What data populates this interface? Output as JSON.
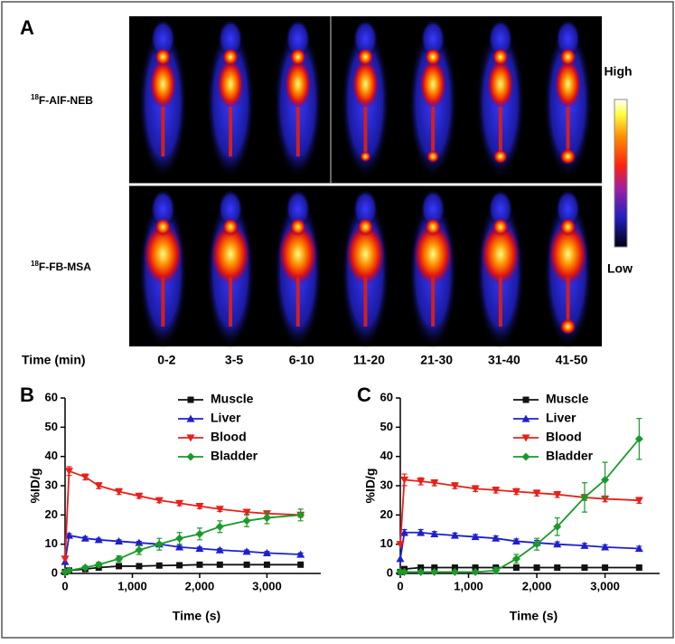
{
  "panel_a": {
    "panel_label": "A",
    "rows": [
      {
        "sup": "18",
        "text": "F-AlF-NEB"
      },
      {
        "sup": "18",
        "text": "F-FB-MSA"
      }
    ],
    "scale_high": "High",
    "scale_low": "Low",
    "time_label": "Time (min)",
    "time_frames": [
      "0-2",
      "3-5",
      "6-10",
      "11-20",
      "21-30",
      "31-40",
      "41-50"
    ]
  },
  "chart_data": [
    {
      "type": "line",
      "panel_label": "B",
      "x_label": "Time (s)",
      "y_label": "%ID/g",
      "x": [
        0,
        60,
        300,
        500,
        800,
        1100,
        1400,
        1700,
        2000,
        2300,
        2700,
        3000,
        3500
      ],
      "xlim": [
        0,
        3800
      ],
      "xticks": [
        0,
        {
          "value": 1000,
          "label": "1,000"
        },
        {
          "value": 2000,
          "label": "2,000"
        },
        {
          "value": 3000,
          "label": "3,000"
        }
      ],
      "ylim": [
        0,
        60
      ],
      "yticks": [
        0,
        10,
        20,
        30,
        40,
        50,
        60
      ],
      "legend": "upper right",
      "series": [
        {
          "name": "Muscle",
          "color": "#111111",
          "marker": "square",
          "values": [
            0.5,
            1,
            1.5,
            2,
            2.5,
            2.5,
            2.7,
            2.8,
            3,
            3,
            3,
            3,
            3
          ],
          "errors": [
            0,
            0.2,
            0.3,
            0.3,
            0.3,
            0.3,
            0.3,
            0.3,
            0.3,
            0.3,
            0.3,
            0.3,
            0.3
          ]
        },
        {
          "name": "Liver",
          "color": "#1f1fcf",
          "marker": "triangle",
          "values": [
            4,
            13,
            12,
            11.5,
            11,
            10.5,
            10,
            9,
            8.5,
            8,
            7.5,
            7,
            6.5
          ],
          "errors": [
            0,
            0.6,
            0.6,
            0.5,
            0.5,
            0.5,
            0.5,
            0.5,
            0.5,
            0.5,
            0.5,
            0.5,
            0.5
          ]
        },
        {
          "name": "Blood",
          "color": "#e8201a",
          "marker": "triangle-down",
          "values": [
            5,
            35,
            33,
            30,
            28,
            26.5,
            25,
            24,
            23,
            22,
            21,
            20.5,
            20
          ],
          "errors": [
            0,
            1.5,
            1,
            1,
            1,
            0.8,
            0.8,
            0.8,
            0.8,
            0.8,
            0.8,
            0.8,
            0.8
          ]
        },
        {
          "name": "Bladder",
          "color": "#1a9a2a",
          "marker": "diamond",
          "values": [
            0.5,
            1,
            2,
            3,
            5,
            8,
            10,
            12,
            13.5,
            16,
            18,
            19,
            20
          ],
          "errors": [
            0,
            0.3,
            0.5,
            0.8,
            1,
            1.5,
            2,
            2,
            2,
            2,
            2,
            2,
            2
          ]
        }
      ]
    },
    {
      "type": "line",
      "panel_label": "C",
      "x_label": "Time (s)",
      "y_label": "%ID/g",
      "x": [
        0,
        60,
        300,
        500,
        800,
        1100,
        1400,
        1700,
        2000,
        2300,
        2700,
        3000,
        3500
      ],
      "xlim": [
        0,
        3800
      ],
      "xticks": [
        0,
        {
          "value": 1000,
          "label": "1,000"
        },
        {
          "value": 2000,
          "label": "2,000"
        },
        {
          "value": 3000,
          "label": "3,000"
        }
      ],
      "ylim": [
        0,
        60
      ],
      "yticks": [
        0,
        10,
        20,
        30,
        40,
        50,
        60
      ],
      "legend": "upper right",
      "series": [
        {
          "name": "Muscle",
          "color": "#111111",
          "marker": "square",
          "values": [
            0.5,
            1.5,
            2,
            2,
            2,
            2,
            2,
            2,
            2,
            2,
            2,
            2,
            2
          ],
          "errors": [
            0,
            0.3,
            0.3,
            0.3,
            0.3,
            0.3,
            0.3,
            0.3,
            0.3,
            0.3,
            0.3,
            0.3,
            0.3
          ]
        },
        {
          "name": "Liver",
          "color": "#1f1fcf",
          "marker": "triangle",
          "values": [
            5,
            14,
            14,
            13.5,
            13,
            12.5,
            12,
            11,
            10.5,
            10,
            9.5,
            9,
            8.5
          ],
          "errors": [
            0,
            1,
            1,
            0.8,
            0.8,
            0.8,
            0.8,
            0.8,
            0.8,
            0.8,
            0.8,
            0.8,
            0.8
          ]
        },
        {
          "name": "Blood",
          "color": "#e8201a",
          "marker": "triangle-down",
          "values": [
            10,
            32,
            31.5,
            31,
            30,
            29,
            28.5,
            28,
            27.5,
            27,
            26,
            25.5,
            25
          ],
          "errors": [
            0,
            2,
            1.2,
            1,
            1,
            1,
            1,
            1,
            1,
            1,
            1,
            1,
            1
          ]
        },
        {
          "name": "Bladder",
          "color": "#1a9a2a",
          "marker": "diamond",
          "values": [
            0.5,
            0.5,
            0.5,
            0.5,
            0.5,
            0.5,
            1,
            5,
            10,
            16,
            26,
            32,
            46
          ],
          "errors": [
            0,
            0,
            0,
            0,
            0,
            0,
            1,
            1.5,
            2,
            3,
            5,
            6,
            7
          ]
        }
      ]
    }
  ]
}
